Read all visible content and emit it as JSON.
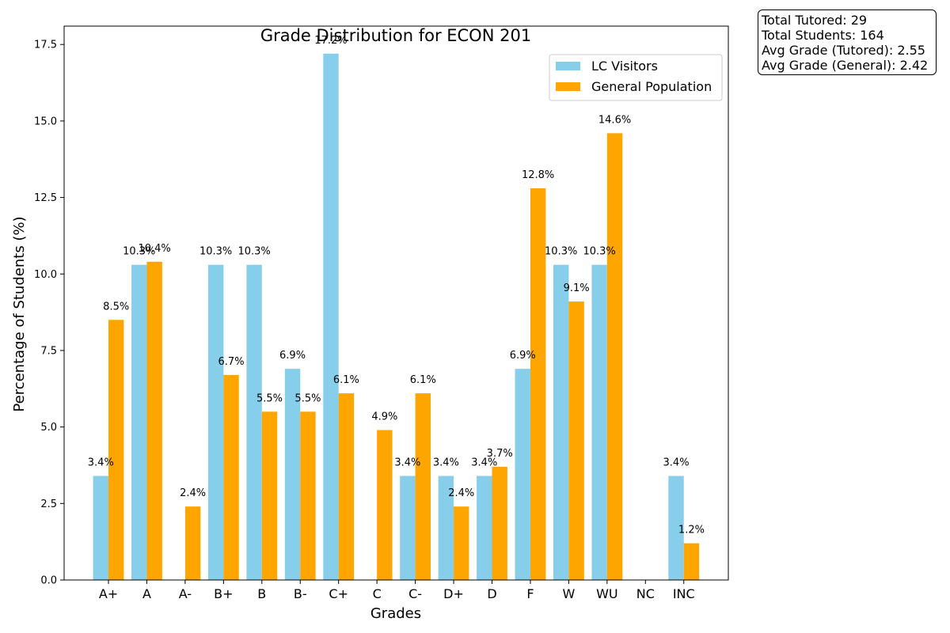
{
  "chart_data": {
    "type": "bar",
    "title": "Grade Distribution for ECON 201",
    "xlabel": "Grades",
    "ylabel": "Percentage of Students (%)",
    "ylim": [
      0,
      18.1
    ],
    "yticks": [
      "0.0",
      "2.5",
      "5.0",
      "7.5",
      "10.0",
      "12.5",
      "15.0",
      "17.5"
    ],
    "categories": [
      "A+",
      "A",
      "A-",
      "B+",
      "B",
      "B-",
      "C+",
      "C",
      "C-",
      "D+",
      "D",
      "F",
      "W",
      "WU",
      "NC",
      "INC"
    ],
    "series": [
      {
        "name": "LC Visitors",
        "color": "#87CEEB",
        "values": [
          3.4,
          10.3,
          0,
          10.3,
          10.3,
          6.9,
          17.2,
          0,
          3.4,
          3.4,
          3.4,
          6.9,
          10.3,
          10.3,
          0,
          3.4
        ],
        "labels": [
          "3.4%",
          "10.3%",
          "",
          "10.3%",
          "10.3%",
          "6.9%",
          "17.2%",
          "",
          "3.4%",
          "3.4%",
          "3.4%",
          "6.9%",
          "10.3%",
          "10.3%",
          "",
          "3.4%"
        ]
      },
      {
        "name": "General Population",
        "color": "#FFA500",
        "values": [
          8.5,
          10.4,
          2.4,
          6.7,
          5.5,
          5.5,
          6.1,
          4.9,
          6.1,
          2.4,
          3.7,
          12.8,
          9.1,
          14.6,
          0,
          1.2
        ],
        "labels": [
          "8.5%",
          "10.4%",
          "2.4%",
          "6.7%",
          "5.5%",
          "5.5%",
          "6.1%",
          "4.9%",
          "6.1%",
          "2.4%",
          "3.7%",
          "12.8%",
          "9.1%",
          "14.6%",
          "",
          "1.2%"
        ]
      }
    ],
    "grid": false,
    "legend": "top-right"
  },
  "stats": {
    "total_tutored": "Total Tutored: 29",
    "total_students": "Total Students: 164",
    "avg_tutored": "Avg Grade (Tutored): 2.55",
    "avg_general": "Avg Grade (General): 2.42"
  }
}
